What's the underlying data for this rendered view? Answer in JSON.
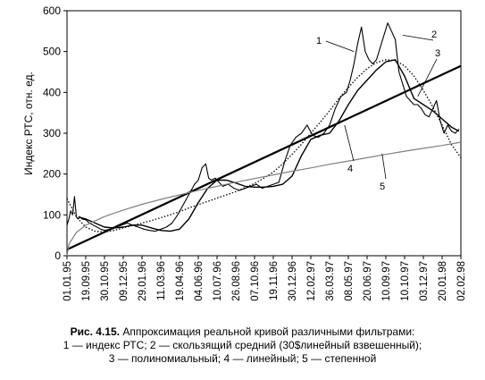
{
  "chart_data": {
    "type": "line",
    "ylabel": "Индекс РТС, отн. ед.",
    "ylim": [
      0,
      600
    ],
    "y_ticks": [
      0,
      100,
      200,
      300,
      400,
      500,
      600
    ],
    "x_tick_labels": [
      "01.01.95",
      "19.09.95",
      "30.10.95",
      "09.12.95",
      "29.01.96",
      "11.03.96",
      "19.04.96",
      "04.06.96",
      "10.07.96",
      "26.08.96",
      "07.10.96",
      "19.11.96",
      "30.12.96",
      "12.02.97",
      "36.03.97",
      "08.05.97",
      "20.06.97",
      "10.09.97",
      "10.10.97",
      "03.12.97",
      "20.01.98",
      "02.02.98"
    ],
    "x_range": [
      0,
      21
    ],
    "series": [
      {
        "name": "1",
        "color": "#000000",
        "x": [
          0,
          0.1,
          0.2,
          0.3,
          0.4,
          0.5,
          0.6,
          0.7,
          0.8,
          1,
          1.2,
          1.4,
          1.6,
          1.8,
          2,
          2.3,
          2.6,
          2.9,
          3.2,
          3.5,
          3.8,
          4.1,
          4.4,
          4.7,
          5,
          5.3,
          5.6,
          5.9,
          6.2,
          6.5,
          6.8,
          7,
          7.2,
          7.4,
          7.55,
          7.7,
          7.9,
          8.1,
          8.3,
          8.6,
          8.9,
          9.2,
          9.5,
          9.8,
          10.1,
          10.4,
          10.7,
          11,
          11.3,
          11.6,
          11.9,
          12.2,
          12.5,
          12.8,
          13.1,
          13.4,
          13.7,
          14,
          14.3,
          14.6,
          14.9,
          15.1,
          15.3,
          15.5,
          15.7,
          15.9,
          16.1,
          16.3,
          16.5,
          16.7,
          16.9,
          17.1,
          17.3,
          17.5,
          17.7,
          17.9,
          18.1,
          18.3,
          18.5,
          18.7,
          18.9,
          19.1,
          19.3,
          19.5,
          19.7,
          19.9,
          20.1,
          20.3,
          20.5,
          20.7,
          20.9
        ],
        "values": [
          75,
          90,
          110,
          100,
          145,
          95,
          90,
          95,
          90,
          88,
          80,
          75,
          70,
          65,
          62,
          65,
          70,
          75,
          80,
          75,
          70,
          65,
          62,
          60,
          65,
          70,
          80,
          100,
          125,
          150,
          175,
          185,
          215,
          225,
          190,
          185,
          190,
          180,
          170,
          175,
          165,
          160,
          165,
          170,
          175,
          165,
          170,
          175,
          180,
          230,
          270,
          290,
          300,
          320,
          295,
          290,
          300,
          320,
          360,
          390,
          400,
          430,
          470,
          520,
          560,
          500,
          480,
          470,
          480,
          510,
          540,
          570,
          550,
          530,
          450,
          420,
          390,
          380,
          370,
          370,
          360,
          345,
          340,
          360,
          380,
          330,
          300,
          320,
          305,
          300,
          310
        ]
      },
      {
        "name": "2",
        "color": "#000000",
        "x": [
          0.6,
          1,
          1.5,
          2,
          2.5,
          3,
          3.5,
          4,
          4.5,
          5,
          5.5,
          6,
          6.5,
          7,
          7.5,
          8,
          8.5,
          9,
          9.5,
          10,
          10.5,
          11,
          11.5,
          12,
          12.5,
          13,
          13.5,
          14,
          14.5,
          15,
          15.5,
          16,
          16.5,
          17,
          17.5,
          18,
          18.5,
          19,
          19.5,
          20,
          20.5,
          20.9
        ],
        "values": [
          95,
          90,
          80,
          70,
          68,
          70,
          75,
          75,
          68,
          62,
          60,
          65,
          90,
          130,
          165,
          185,
          185,
          178,
          170,
          168,
          168,
          170,
          175,
          195,
          245,
          285,
          295,
          300,
          330,
          370,
          405,
          430,
          455,
          475,
          480,
          440,
          385,
          370,
          355,
          335,
          315,
          305
        ]
      },
      {
        "name": "3",
        "color": "#000000",
        "x": [
          0,
          0.5,
          1,
          1.5,
          2,
          2.5,
          3,
          3.5,
          4,
          4.5,
          5,
          5.5,
          6,
          6.5,
          7,
          7.5,
          8,
          8.5,
          9,
          9.5,
          10,
          10.5,
          11,
          11.5,
          12,
          12.5,
          13,
          13.5,
          14,
          14.5,
          15,
          15.5,
          16,
          16.5,
          17,
          17.5,
          18,
          18.5,
          19,
          19.5,
          20,
          20.5,
          21
        ],
        "values": [
          140,
          95,
          70,
          60,
          58,
          62,
          68,
          74,
          80,
          86,
          93,
          100,
          108,
          117,
          125,
          133,
          141,
          149,
          157,
          167,
          177,
          190,
          205,
          225,
          248,
          273,
          300,
          327,
          355,
          385,
          412,
          437,
          458,
          473,
          480,
          478,
          465,
          440,
          405,
          365,
          320,
          272,
          240
        ]
      },
      {
        "name": "4",
        "color": "#000000",
        "x": [
          0,
          21
        ],
        "values": [
          15,
          465
        ]
      },
      {
        "name": "5",
        "color": "#000000",
        "x": [
          0,
          0.1,
          0.5,
          1,
          2,
          3,
          4,
          5,
          6,
          7,
          8,
          9,
          10,
          11,
          12,
          13,
          14,
          15,
          16,
          17,
          18,
          19,
          20,
          21
        ],
        "values": [
          0,
          28,
          57,
          75,
          96,
          112,
          126,
          138,
          149,
          160,
          170,
          180,
          189,
          198,
          207,
          215,
          224,
          232,
          240,
          248,
          256,
          263,
          270,
          278
        ]
      }
    ],
    "grid": false,
    "legend": "callout numbers"
  },
  "caption": {
    "bold": "Рис. 4.15.",
    "line1": " Аппроксимация реальной кривой различными фильтрами:",
    "line2": "1 — индекс РТС; 2 — скользящий средний (30$линейный  взвешенный);",
    "line3": "3 — полиномиальный; 4 — линейный; 5 — степенной"
  }
}
